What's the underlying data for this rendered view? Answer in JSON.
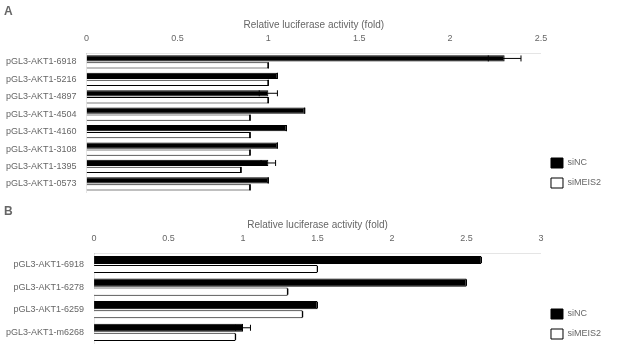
{
  "chart_data": [
    {
      "type": "bar",
      "orientation": "horizontal",
      "title": "A",
      "x_label": "Relative luciferase activity (fold)",
      "categories": [
        "pGL3-AKT1-6918",
        "pGL3-AKT1-5216",
        "pGL3-AKT1-4897",
        "pGL3-AKT1-4504",
        "pGL3-AKT1-4160",
        "pGL3-AKT1-3108",
        "pGL3-AKT1-1395",
        "pGL3-AKT1-0573"
      ],
      "series": [
        {
          "name": "siNC",
          "color": "#000000",
          "values": [
            2.3,
            1.05,
            1.0,
            1.2,
            1.1,
            1.05,
            1.0,
            1.0
          ],
          "errors": [
            0.09,
            0.0,
            0.05,
            0.0,
            0.0,
            0.0,
            0.04,
            0.0
          ]
        },
        {
          "name": "siMEIS2",
          "color": "#ffffff",
          "values": [
            1.0,
            1.0,
            1.0,
            0.9,
            0.9,
            0.9,
            0.85,
            0.9
          ],
          "errors": [
            0.0,
            0.0,
            0.0,
            0.0,
            0.0,
            0.0,
            0.0,
            0.0
          ]
        }
      ],
      "xlim": [
        0,
        2.5
      ],
      "xticks": [
        0,
        0.5,
        1,
        1.5,
        2,
        2.5
      ],
      "grid": false,
      "legend": "lower right"
    },
    {
      "type": "bar",
      "orientation": "horizontal",
      "title": "B",
      "x_label": "Relative luciferase activity (fold)",
      "categories": [
        "pGL3-AKT1-6918",
        "pGL3-AKT1-6278",
        "pGL3-AKT1-6259",
        "pGL3-AKT1-m6268"
      ],
      "series": [
        {
          "name": "siNC",
          "color": "#000000",
          "values": [
            2.6,
            2.5,
            1.5,
            1.0
          ],
          "errors": [
            0.0,
            0.0,
            0.0,
            0.05
          ]
        },
        {
          "name": "siMEIS2",
          "color": "#ffffff",
          "values": [
            1.5,
            1.3,
            1.4,
            0.95
          ],
          "errors": [
            0.0,
            0.0,
            0.0,
            0.0
          ]
        }
      ],
      "xlim": [
        0,
        3
      ],
      "xticks": [
        0,
        0.5,
        1,
        1.5,
        2,
        2.5,
        3
      ],
      "grid": false,
      "legend": "lower right"
    }
  ]
}
